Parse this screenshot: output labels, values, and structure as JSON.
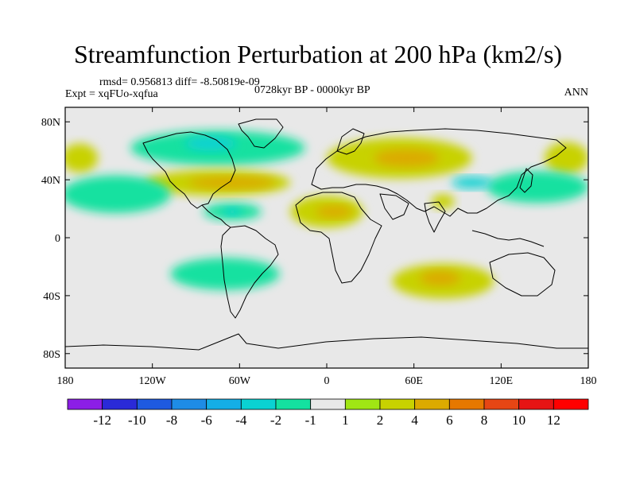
{
  "title": "Streamfunction Perturbation at 200 hPa (km2/s)",
  "stats_line": "rmsd= 0.956813 diff= -8.50819e-09",
  "experiment_line": "Expt = xqFUo-xqfua",
  "period_line": "0728kyr BP - 0000kyr BP",
  "season": "ANN",
  "chart_data": {
    "type": "heatmap",
    "subtype": "filled-contour world map",
    "variable": "Streamfunction perturbation",
    "level": "200 hPa",
    "units": "km2/s",
    "x_axis": {
      "range": [
        -180,
        180
      ],
      "ticks": [
        -180,
        -120,
        -60,
        0,
        60,
        120,
        180
      ],
      "tick_labels": [
        "180",
        "120W",
        "60W",
        "0",
        "60E",
        "120E",
        "180"
      ]
    },
    "y_axis": {
      "range": [
        -90,
        90
      ],
      "ticks": [
        80,
        40,
        0,
        -40,
        -80
      ],
      "tick_labels": [
        "80N",
        "40N",
        "0",
        "40S",
        "80S"
      ]
    },
    "colorbar": {
      "labels": [
        "-12",
        "-10",
        "-8",
        "-6",
        "-4",
        "-2",
        "-1",
        "1",
        "2",
        "4",
        "6",
        "8",
        "10",
        "12"
      ],
      "colors": [
        "#8c1ee6",
        "#2a2ad8",
        "#1e5ae0",
        "#1e8ce6",
        "#14aee6",
        "#0ad2d2",
        "#14e1a0",
        "#e8e8e8",
        "#a0e614",
        "#c8d200",
        "#dcaa00",
        "#e67800",
        "#e64614",
        "#e61414",
        "#ff0000"
      ]
    },
    "anomaly_regions": [
      {
        "name": "north-pacific-east-high",
        "lon": -170,
        "lat": 55,
        "lon_span": 25,
        "lat_span": 20,
        "value": 2
      },
      {
        "name": "east-asia-pacific-high",
        "lon": 165,
        "lat": 55,
        "lon_span": 30,
        "lat_span": 22,
        "value": 2
      },
      {
        "name": "north-atlantic-low",
        "lon": -75,
        "lat": 62,
        "lon_span": 120,
        "lat_span": 24,
        "value": -2
      },
      {
        "name": "hudson-bay-low-core",
        "lon": -80,
        "lat": 65,
        "lon_span": 35,
        "lat_span": 10,
        "value": -4
      },
      {
        "name": "eurasia-high",
        "lon": 50,
        "lat": 55,
        "lon_span": 100,
        "lat_span": 28,
        "value": 2
      },
      {
        "name": "eurasia-high-core",
        "lon": 55,
        "lat": 55,
        "lon_span": 45,
        "lat_span": 12,
        "value": 4
      },
      {
        "name": "north-america-atlantic-high",
        "lon": -75,
        "lat": 38,
        "lon_span": 100,
        "lat_span": 18,
        "value": 2
      },
      {
        "name": "north-america-atlantic-high-core",
        "lon": -65,
        "lat": 38,
        "lon_span": 60,
        "lat_span": 8,
        "value": 4
      },
      {
        "name": "north-pacific-low",
        "lon": -145,
        "lat": 30,
        "lon_span": 75,
        "lat_span": 26,
        "value": -2
      },
      {
        "name": "west-pacific-low",
        "lon": 145,
        "lat": 35,
        "lon_span": 70,
        "lat_span": 22,
        "value": -2
      },
      {
        "name": "china-low-core",
        "lon": 100,
        "lat": 38,
        "lon_span": 28,
        "lat_span": 8,
        "value": -4
      },
      {
        "name": "caribbean-low",
        "lon": -65,
        "lat": 18,
        "lon_span": 40,
        "lat_span": 12,
        "value": -2
      },
      {
        "name": "caribbean-low-core",
        "lon": -65,
        "lat": 18,
        "lon_span": 12,
        "lat_span": 5,
        "value": -4
      },
      {
        "name": "west-africa-high",
        "lon": 0,
        "lat": 18,
        "lon_span": 50,
        "lat_span": 22,
        "value": 2
      },
      {
        "name": "west-africa-high-core",
        "lon": 5,
        "lat": 18,
        "lon_span": 25,
        "lat_span": 8,
        "value": 4
      },
      {
        "name": "arabia-high",
        "lon": 80,
        "lat": 25,
        "lon_span": 16,
        "lat_span": 10,
        "value": 2
      },
      {
        "name": "south-atlantic-low",
        "lon": -70,
        "lat": -25,
        "lon_span": 75,
        "lat_span": 22,
        "value": -2
      },
      {
        "name": "south-indian-high",
        "lon": 80,
        "lat": -30,
        "lon_span": 70,
        "lat_span": 24,
        "value": 2
      },
      {
        "name": "south-indian-high-core",
        "lon": 78,
        "lat": -28,
        "lon_span": 28,
        "lat_span": 10,
        "value": 4
      }
    ]
  }
}
